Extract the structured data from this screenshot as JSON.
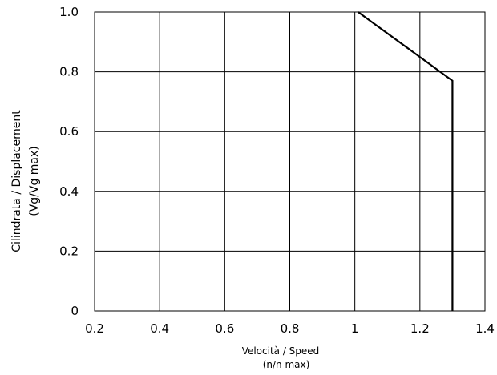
{
  "chart_data": {
    "type": "line",
    "xlabel": [
      "Velocità / Speed",
      "(n/n max)"
    ],
    "ylabel": [
      "Cilindrata / Displacement",
      "(Vg/Vg max)"
    ],
    "xlim": [
      0.2,
      1.4
    ],
    "ylim": [
      0,
      1.0
    ],
    "x_ticks": [
      "0.2",
      "0.4",
      "0.6",
      "0.8",
      "1",
      "1.2",
      "1.4"
    ],
    "y_ticks": [
      "0",
      "0.2",
      "0.4",
      "0.6",
      "0.8",
      "1.0"
    ],
    "grid": true,
    "series": [
      {
        "points": [
          [
            1.01,
            1.0
          ],
          [
            1.3,
            0.77
          ],
          [
            1.3,
            0.0
          ]
        ],
        "color": "#000000"
      }
    ]
  }
}
